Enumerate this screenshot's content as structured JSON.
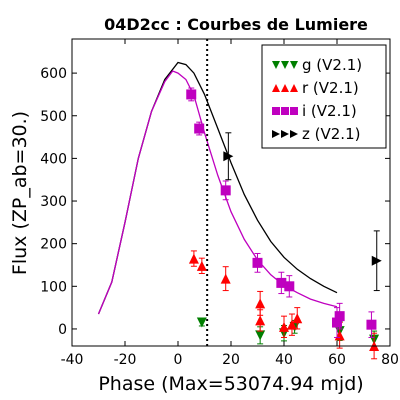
{
  "chart_data": {
    "type": "scatter",
    "title": "04D2cc : Courbes de Lumiere",
    "xlabel": "Phase (Max=53074.94 mjd)",
    "ylabel": "Flux (ZP_ab=30.)",
    "xlim": [
      -40,
      80
    ],
    "ylim": [
      -40,
      680
    ],
    "xticks": [
      -40,
      -20,
      0,
      20,
      40,
      60,
      80
    ],
    "xtick_labels": [
      "-40",
      "-20",
      "0",
      "20",
      "40",
      "60",
      "80"
    ],
    "yticks": [
      0,
      100,
      200,
      300,
      400,
      500,
      600
    ],
    "ytick_labels": [
      "0",
      "100",
      "200",
      "300",
      "400",
      "500",
      "600"
    ],
    "grid": false,
    "legend_position": "top-right",
    "vline": {
      "x": 11,
      "style": "dotted",
      "color": "#000000"
    },
    "series": [
      {
        "name": "g (V2.1)",
        "marker": "triangle-down",
        "color": "#007f00",
        "points": [
          {
            "x": 9,
            "y": 15,
            "err": 8
          },
          {
            "x": 31,
            "y": -15,
            "err": 20
          },
          {
            "x": 40,
            "y": -10,
            "err": 18
          },
          {
            "x": 44,
            "y": 5,
            "err": 15
          },
          {
            "x": 61,
            "y": -5,
            "err": 22
          },
          {
            "x": 74,
            "y": -25,
            "err": 20
          }
        ]
      },
      {
        "name": "r (V2.1)",
        "marker": "triangle-up",
        "color": "#ff0000",
        "points": [
          {
            "x": 6,
            "y": 165,
            "err": 18
          },
          {
            "x": 9,
            "y": 148,
            "err": 18
          },
          {
            "x": 18,
            "y": 118,
            "err": 28
          },
          {
            "x": 31,
            "y": 60,
            "err": 28
          },
          {
            "x": 31,
            "y": 20,
            "err": 25
          },
          {
            "x": 40,
            "y": 5,
            "err": 25
          },
          {
            "x": 43,
            "y": 10,
            "err": 25
          },
          {
            "x": 45,
            "y": 25,
            "err": 25
          },
          {
            "x": 61,
            "y": -15,
            "err": 30
          },
          {
            "x": 74,
            "y": -40,
            "err": 30
          }
        ]
      },
      {
        "name": "i (V2.1)",
        "marker": "square",
        "color": "#bf00bf",
        "points": [
          {
            "x": 5,
            "y": 550,
            "err": 15
          },
          {
            "x": 8,
            "y": 470,
            "err": 15
          },
          {
            "x": 18,
            "y": 325,
            "err": 22
          },
          {
            "x": 30,
            "y": 155,
            "err": 22
          },
          {
            "x": 39,
            "y": 108,
            "err": 25
          },
          {
            "x": 42,
            "y": 100,
            "err": 25
          },
          {
            "x": 60,
            "y": 15,
            "err": 35
          },
          {
            "x": 61,
            "y": 30,
            "err": 30
          },
          {
            "x": 73,
            "y": 10,
            "err": 30
          }
        ]
      },
      {
        "name": "z (V2.1)",
        "marker": "triangle-right",
        "color": "#000000",
        "points": [
          {
            "x": 19,
            "y": 405,
            "err": 55
          },
          {
            "x": 75,
            "y": 160,
            "err": 70
          }
        ]
      }
    ],
    "curves": [
      {
        "color": "#000000",
        "points": [
          [
            -30,
            35
          ],
          [
            -25,
            110
          ],
          [
            -20,
            250
          ],
          [
            -15,
            400
          ],
          [
            -10,
            510
          ],
          [
            -5,
            585
          ],
          [
            0,
            625
          ],
          [
            3,
            620
          ],
          [
            6,
            600
          ],
          [
            10,
            550
          ],
          [
            15,
            470
          ],
          [
            20,
            390
          ],
          [
            25,
            315
          ],
          [
            30,
            255
          ],
          [
            35,
            205
          ],
          [
            40,
            168
          ],
          [
            45,
            140
          ],
          [
            50,
            118
          ],
          [
            55,
            100
          ],
          [
            60,
            85
          ]
        ]
      },
      {
        "color": "#bf00bf",
        "points": [
          [
            -30,
            35
          ],
          [
            -25,
            110
          ],
          [
            -20,
            250
          ],
          [
            -15,
            400
          ],
          [
            -10,
            510
          ],
          [
            -5,
            580
          ],
          [
            -2,
            605
          ],
          [
            0,
            600
          ],
          [
            3,
            585
          ],
          [
            6,
            548
          ],
          [
            10,
            460
          ],
          [
            15,
            360
          ],
          [
            20,
            275
          ],
          [
            25,
            210
          ],
          [
            30,
            162
          ],
          [
            35,
            127
          ],
          [
            40,
            102
          ],
          [
            45,
            85
          ],
          [
            50,
            70
          ],
          [
            55,
            60
          ],
          [
            60,
            52
          ]
        ]
      }
    ]
  }
}
